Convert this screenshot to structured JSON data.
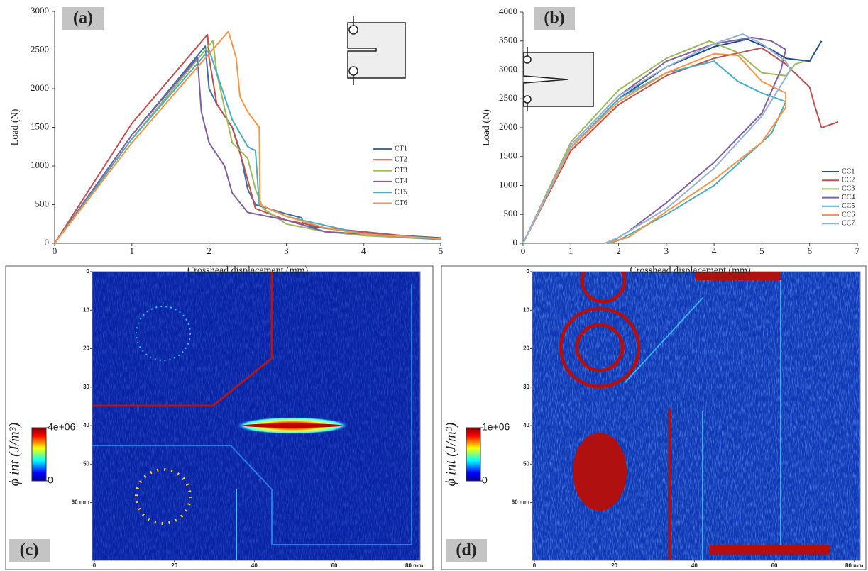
{
  "chart_data": [
    {
      "type": "line",
      "panel_label": "(a)",
      "xlabel": "Crosshead displacement (mm)",
      "ylabel": "Load (N)",
      "xlim": [
        0,
        5
      ],
      "ylim": [
        0,
        3000
      ],
      "xticks": [
        0,
        1,
        2,
        3,
        4,
        5
      ],
      "yticks": [
        0,
        500,
        1000,
        1500,
        2000,
        2500,
        3000
      ],
      "legend": "right",
      "series": [
        {
          "name": "CT1",
          "color": "#3d6ea8",
          "x": [
            0,
            1,
            1.95,
            2.0,
            2.1,
            2.3,
            2.4,
            2.5,
            2.6,
            3.0,
            3.2,
            3.22,
            4,
            5
          ],
          "values": [
            0,
            1400,
            2550,
            2000,
            1800,
            1500,
            1200,
            700,
            500,
            380,
            330,
            230,
            130,
            70
          ]
        },
        {
          "name": "CT2",
          "color": "#c0504d",
          "x": [
            0,
            1,
            1.98,
            2.0,
            2.1,
            2.3,
            2.45,
            2.6,
            3,
            3.5,
            4.5,
            5
          ],
          "values": [
            0,
            1550,
            2700,
            2400,
            1800,
            1500,
            1000,
            450,
            300,
            200,
            100,
            50
          ]
        },
        {
          "name": "CT3",
          "color": "#9bbb59",
          "x": [
            0,
            1,
            2.05,
            2.1,
            2.3,
            2.5,
            2.6,
            2.7,
            3,
            3.5,
            4,
            5
          ],
          "values": [
            0,
            1350,
            2620,
            2200,
            1300,
            1100,
            700,
            450,
            250,
            150,
            100,
            50
          ]
        },
        {
          "name": "CT4",
          "color": "#7f60a0",
          "x": [
            0,
            1,
            1.85,
            1.9,
            2.0,
            2.2,
            2.3,
            2.5,
            3,
            3.5,
            4,
            5
          ],
          "values": [
            0,
            1400,
            2400,
            1700,
            1300,
            1000,
            650,
            400,
            300,
            150,
            120,
            50
          ]
        },
        {
          "name": "CT5",
          "color": "#4bacc6",
          "x": [
            0,
            1,
            2.0,
            2.1,
            2.3,
            2.5,
            2.6,
            2.65,
            3,
            3.2,
            4,
            5
          ],
          "values": [
            0,
            1350,
            2500,
            2200,
            1600,
            1250,
            1200,
            500,
            350,
            300,
            120,
            50
          ]
        },
        {
          "name": "CT6",
          "color": "#f79646",
          "x": [
            0,
            1,
            2.25,
            2.35,
            2.4,
            2.5,
            2.65,
            2.66,
            3,
            3.5,
            4,
            5
          ],
          "values": [
            0,
            1300,
            2740,
            2400,
            1900,
            1700,
            1500,
            500,
            350,
            200,
            120,
            60
          ]
        }
      ]
    },
    {
      "type": "line",
      "panel_label": "(b)",
      "xlabel": "Crosshead displacement (mm)",
      "ylabel": "Load (N)",
      "xlim": [
        0,
        7
      ],
      "ylim": [
        0,
        4000
      ],
      "xticks": [
        0,
        1,
        2,
        3,
        4,
        5,
        6,
        7
      ],
      "yticks": [
        0,
        500,
        1000,
        1500,
        2000,
        2500,
        3000,
        3500,
        4000
      ],
      "legend": "right",
      "series": [
        {
          "name": "CC1",
          "color": "#1f4e8c",
          "x": [
            0,
            1,
            2,
            3,
            4,
            4.7,
            5.2,
            5.5,
            6.0,
            6.25
          ],
          "values": [
            0,
            1650,
            2500,
            3050,
            3400,
            3530,
            3350,
            3200,
            3150,
            3500
          ]
        },
        {
          "name": "CC2",
          "color": "#c0504d",
          "x": [
            0,
            1,
            2,
            3,
            4,
            5,
            5.5,
            6,
            6.1,
            6.25,
            6.6
          ],
          "values": [
            0,
            1600,
            2400,
            2900,
            3200,
            3380,
            3100,
            2700,
            2400,
            2000,
            2100
          ]
        },
        {
          "name": "CC3",
          "color": "#9bbb59",
          "x": [
            0,
            1,
            2,
            3,
            3.9,
            4.5,
            5,
            5.5,
            5.7,
            5.9
          ],
          "values": [
            0,
            1750,
            2650,
            3200,
            3500,
            3300,
            2950,
            2900,
            3100,
            3150
          ]
        },
        {
          "name": "CC4",
          "color": "#7f60a0",
          "x": [
            0,
            1,
            2,
            3,
            4,
            4.8,
            5.2,
            5.5,
            5.4,
            5,
            4,
            3,
            2.2,
            1.8
          ],
          "values": [
            0,
            1700,
            2550,
            3150,
            3450,
            3560,
            3500,
            3350,
            3000,
            2250,
            1400,
            700,
            200,
            0
          ]
        },
        {
          "name": "CC5",
          "color": "#4bacc6",
          "x": [
            0,
            1,
            2,
            3,
            4,
            4.5,
            5,
            5.5,
            5.2,
            4,
            3,
            2,
            1.8
          ],
          "values": [
            0,
            1650,
            2500,
            2950,
            3150,
            2800,
            2600,
            2450,
            1900,
            1000,
            500,
            50,
            0
          ]
        },
        {
          "name": "CC6",
          "color": "#f79646",
          "x": [
            0,
            1,
            2,
            3,
            4,
            4.5,
            5,
            5.5,
            5.5,
            5,
            4,
            3,
            2.2,
            1.7
          ],
          "values": [
            0,
            1650,
            2450,
            2950,
            3280,
            3250,
            2800,
            2600,
            2350,
            1750,
            1100,
            550,
            100,
            0
          ]
        },
        {
          "name": "CC7",
          "color": "#95b3d7",
          "x": [
            0,
            1,
            2,
            3,
            4,
            4.6,
            5,
            5.5,
            5.6,
            5,
            4,
            3,
            2,
            1.7
          ],
          "values": [
            0,
            1700,
            2550,
            3050,
            3450,
            3620,
            3450,
            3150,
            3000,
            2200,
            1300,
            600,
            100,
            0
          ]
        }
      ]
    },
    {
      "type": "heatmap",
      "panel_label": "(c)",
      "xlim": [
        0,
        82
      ],
      "ylim": [
        0,
        75
      ],
      "xticks": [
        0,
        20,
        40,
        60,
        {
          "value": 80,
          "label": "80 mm"
        }
      ],
      "yticks": [
        0,
        10,
        20,
        30,
        40,
        50,
        {
          "value": 60,
          "label": "60 mm"
        }
      ],
      "colorbar": {
        "label": "ϕ int (J/m³)",
        "lim": [
          0,
          4000000
        ],
        "ticks": [
          0,
          {
            "value": 4000000,
            "label": "4e+06"
          }
        ]
      }
    },
    {
      "type": "heatmap",
      "panel_label": "(d)",
      "xlim": [
        0,
        82
      ],
      "ylim": [
        0,
        75
      ],
      "xticks": [
        0,
        20,
        40,
        60,
        {
          "value": 80,
          "label": "80 mm"
        }
      ],
      "yticks": [
        0,
        10,
        20,
        30,
        40,
        50,
        {
          "value": 60,
          "label": "60 mm"
        }
      ],
      "colorbar": {
        "label": "ϕ int (J/m³)",
        "lim": [
          0,
          1000000
        ],
        "ticks": [
          0,
          {
            "value": 1000000,
            "label": "1e+06"
          }
        ]
      }
    }
  ]
}
